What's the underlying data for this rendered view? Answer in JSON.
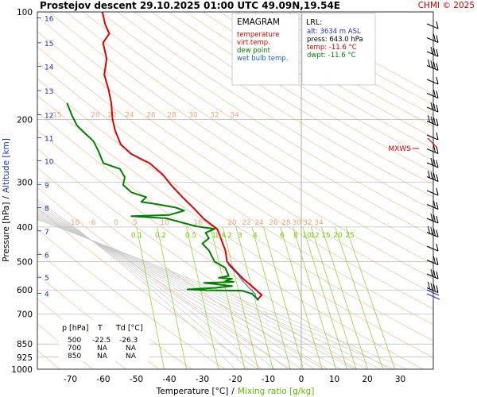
{
  "header": {
    "title": "Prostejov   descent   29.10.2025 01:00 UTC  49.09N,19.54E",
    "credit": "CHMI © 2025"
  },
  "legend": {
    "heading": "EMAGRAM",
    "entries": [
      {
        "label": "temperature",
        "color": "#e00000"
      },
      {
        "label": "virt.temp.",
        "color": "#e00000"
      },
      {
        "label": "dew point",
        "color": "#008000"
      },
      {
        "label": "wet bulb temp.",
        "color": "#2060d0"
      }
    ]
  },
  "lrl": {
    "heading": "LRL:",
    "lines": [
      {
        "text": "alt: 3634 m ASL",
        "color": "#1a2fd0"
      },
      {
        "text": "press: 643.0 hPa",
        "color": "#000000"
      },
      {
        "text": "temp: -11.6 °C",
        "color": "#d00000"
      },
      {
        "text": "dwpt: -11.6 °C",
        "color": "#008000"
      }
    ]
  },
  "table": {
    "headers": [
      "p [hPa]",
      "T",
      "Td [°C]"
    ],
    "rows": [
      [
        "500",
        "-22.5",
        "-26.3"
      ],
      [
        "700",
        "NA",
        "NA"
      ],
      [
        "850",
        "NA",
        "NA"
      ]
    ]
  },
  "axes": {
    "ylabel_pressure": "Pressure [hPa]",
    "ylabel_sep": "/",
    "ylabel_altitude": "Altitude [km]",
    "xlabel_temp": "Temperature [°C]",
    "xlabel_sep": "/",
    "xlabel_mix": "Mixing ratio [g/kg]",
    "pressure_ticks": [
      100,
      200,
      300,
      400,
      500,
      600,
      700,
      850,
      925,
      1000
    ],
    "altitude_ticks": [
      {
        "km": 4,
        "p": 613
      },
      {
        "km": 5,
        "p": 553
      },
      {
        "km": 6,
        "p": 477
      },
      {
        "km": 7,
        "p": 410
      },
      {
        "km": 8,
        "p": 353
      },
      {
        "km": 9,
        "p": 304
      },
      {
        "km": 10,
        "p": 261
      },
      {
        "km": 11,
        "p": 225
      },
      {
        "km": 12,
        "p": 194
      },
      {
        "km": 13,
        "p": 166
      },
      {
        "km": 14,
        "p": 142
      },
      {
        "km": 15,
        "p": 122
      },
      {
        "km": 16,
        "p": 104
      }
    ],
    "temp_ticks": [
      -70,
      -60,
      -50,
      -40,
      -30,
      -20,
      -10,
      0,
      10,
      20,
      30
    ],
    "mixing_ratio_labels": [
      "0.1",
      "0.2",
      "0.5",
      "1",
      "1.4",
      "2",
      "3",
      "4",
      "6",
      "8",
      "10",
      "12",
      "15",
      "20",
      "25"
    ],
    "theta_label_rows": [
      {
        "p": 200,
        "labels": [
          "15",
          "20",
          "22",
          "24",
          "26",
          "28",
          "30",
          "32",
          "34"
        ]
      },
      {
        "p": 400,
        "labels": [
          "-10",
          "-6",
          "0",
          "5",
          "10",
          "16",
          "20",
          "22",
          "24",
          "26",
          "28",
          "30",
          "32",
          "34"
        ]
      }
    ]
  },
  "wind": {
    "mxws_label": "MXWS"
  },
  "chart_data": {
    "type": "line",
    "title": "Prostejov   descent   29.10.2025 01:00 UTC  49.09N,19.54E",
    "xlabel": "Temperature [°C] / Mixing ratio [g/kg]",
    "ylabel": "Pressure [hPa] / Altitude [km]",
    "xlim": [
      -80,
      40
    ],
    "ylim": [
      1000,
      100
    ],
    "y_scale": "log",
    "grid": true,
    "legend_position": "top-center",
    "series": [
      {
        "name": "temperature",
        "color": "#e00000",
        "points": [
          [
            -60.3,
            100
          ],
          [
            -59.5,
            108
          ],
          [
            -58.2,
            115
          ],
          [
            -60.1,
            122
          ],
          [
            -59.0,
            135
          ],
          [
            -59.7,
            150
          ],
          [
            -58.4,
            165
          ],
          [
            -57.6,
            180
          ],
          [
            -57.2,
            200
          ],
          [
            -56.4,
            215
          ],
          [
            -54.7,
            235
          ],
          [
            -51.5,
            250
          ],
          [
            -46.0,
            265
          ],
          [
            -42.0,
            285
          ],
          [
            -39.5,
            305
          ],
          [
            -36.0,
            330
          ],
          [
            -32.5,
            355
          ],
          [
            -29.5,
            380
          ],
          [
            -25.5,
            405
          ],
          [
            -24.8,
            420
          ],
          [
            -24.0,
            440
          ],
          [
            -23.0,
            465
          ],
          [
            -22.5,
            500
          ],
          [
            -20.0,
            530
          ],
          [
            -17.5,
            560
          ],
          [
            -15.0,
            585
          ],
          [
            -12.0,
            620
          ],
          [
            -13.4,
            640
          ]
        ]
      },
      {
        "name": "dew point",
        "color": "#008000",
        "points": [
          [
            -71.0,
            180
          ],
          [
            -69.5,
            195
          ],
          [
            -68.0,
            208
          ],
          [
            -63.0,
            230
          ],
          [
            -61.5,
            245
          ],
          [
            -60.0,
            265
          ],
          [
            -55.0,
            275
          ],
          [
            -53.5,
            290
          ],
          [
            -54.0,
            305
          ],
          [
            -51.5,
            320
          ],
          [
            -47.0,
            330
          ],
          [
            -48.5,
            340
          ],
          [
            -44.0,
            345
          ],
          [
            -38.0,
            353
          ],
          [
            -35.5,
            360
          ],
          [
            -40.0,
            370
          ],
          [
            -51.5,
            373
          ],
          [
            -41.0,
            378
          ],
          [
            -32.0,
            398
          ],
          [
            -26.3,
            405
          ],
          [
            -29.0,
            415
          ],
          [
            -28.0,
            430
          ],
          [
            -30.0,
            445
          ],
          [
            -28.0,
            465
          ],
          [
            -26.3,
            500
          ],
          [
            -23.0,
            520
          ],
          [
            -22.0,
            548
          ],
          [
            -25.0,
            555
          ],
          [
            -21.0,
            558
          ],
          [
            -23.0,
            566
          ],
          [
            -20.5,
            570
          ],
          [
            -29.5,
            573
          ],
          [
            -21.0,
            585
          ],
          [
            -26.0,
            592
          ],
          [
            -34.5,
            598
          ],
          [
            -29.0,
            601
          ],
          [
            -18.0,
            603
          ],
          [
            -15.0,
            615
          ],
          [
            -13.6,
            632
          ],
          [
            -13.0,
            642
          ]
        ]
      },
      {
        "name": "wet bulb temp.",
        "color": "#2060d0",
        "points": [
          [
            -22.2,
            510
          ],
          [
            -19.5,
            540
          ],
          [
            -17.8,
            565
          ],
          [
            -16.0,
            590
          ],
          [
            -14.0,
            615
          ],
          [
            -13.5,
            640
          ]
        ]
      }
    ],
    "table": {
      "columns": [
        "p [hPa]",
        "T",
        "Td [°C]"
      ],
      "rows": [
        [
          "500",
          "-22.5",
          "-26.3"
        ],
        [
          "700",
          "NA",
          "NA"
        ],
        [
          "850",
          "NA",
          "NA"
        ]
      ]
    },
    "annotations": [
      "LRL: alt: 3634 m ASL",
      "press: 643.0 hPa",
      "temp: -11.6 °C",
      "dwpt: -11.6 °C",
      "MXWS"
    ]
  }
}
